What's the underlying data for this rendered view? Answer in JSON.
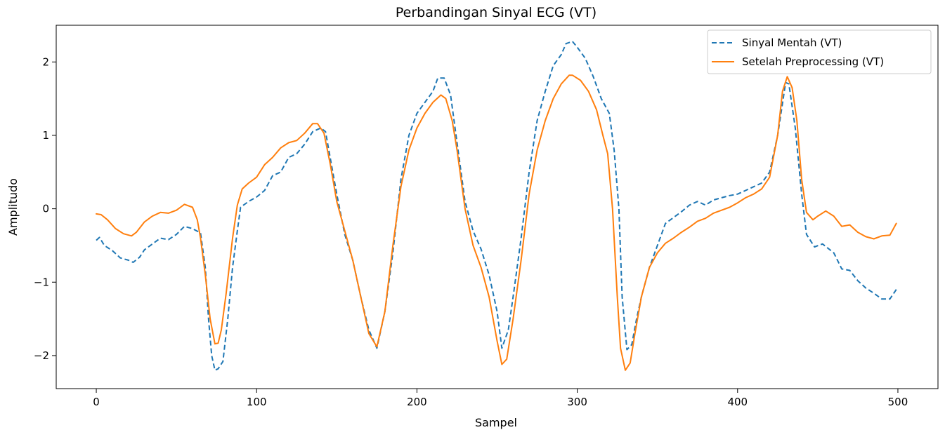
{
  "chart_data": {
    "type": "line",
    "title": "Perbandingan Sinyal ECG (VT)",
    "xlabel": "Sampel",
    "ylabel": "Amplitudo",
    "xlim": [
      -25,
      525
    ],
    "ylim": [
      -2.45,
      2.5
    ],
    "xticks": [
      0,
      100,
      200,
      300,
      400,
      500
    ],
    "xtick_labels": [
      "0",
      "100",
      "200",
      "300",
      "400",
      "500"
    ],
    "yticks": [
      -2,
      -1,
      0,
      1,
      2
    ],
    "ytick_labels": [
      "−2",
      "−1",
      "0",
      "1",
      "2"
    ],
    "grid": false,
    "legend_position": "top-right",
    "series": [
      {
        "name": "Sinyal Mentah (VT)",
        "color": "#1f77b4",
        "line_style": "dashed",
        "points": [
          [
            0,
            -0.43
          ],
          [
            2,
            -0.39
          ],
          [
            5,
            -0.5
          ],
          [
            10,
            -0.57
          ],
          [
            15,
            -0.67
          ],
          [
            20,
            -0.7
          ],
          [
            23,
            -0.73
          ],
          [
            27,
            -0.66
          ],
          [
            30,
            -0.56
          ],
          [
            35,
            -0.48
          ],
          [
            40,
            -0.4
          ],
          [
            45,
            -0.42
          ],
          [
            50,
            -0.35
          ],
          [
            55,
            -0.24
          ],
          [
            60,
            -0.27
          ],
          [
            65,
            -0.33
          ],
          [
            68,
            -0.8
          ],
          [
            70,
            -1.5
          ],
          [
            72,
            -2.0
          ],
          [
            74,
            -2.2
          ],
          [
            76,
            -2.18
          ],
          [
            79,
            -2.08
          ],
          [
            82,
            -1.5
          ],
          [
            85,
            -0.8
          ],
          [
            88,
            -0.3
          ],
          [
            90,
            0.02
          ],
          [
            95,
            0.1
          ],
          [
            100,
            0.16
          ],
          [
            105,
            0.25
          ],
          [
            110,
            0.45
          ],
          [
            115,
            0.5
          ],
          [
            120,
            0.7
          ],
          [
            125,
            0.75
          ],
          [
            130,
            0.88
          ],
          [
            135,
            1.05
          ],
          [
            140,
            1.1
          ],
          [
            143,
            1.05
          ],
          [
            150,
            0.2
          ],
          [
            155,
            -0.35
          ],
          [
            160,
            -0.7
          ],
          [
            165,
            -1.2
          ],
          [
            170,
            -1.65
          ],
          [
            175,
            -1.9
          ],
          [
            180,
            -1.4
          ],
          [
            185,
            -0.6
          ],
          [
            190,
            0.4
          ],
          [
            195,
            1.0
          ],
          [
            200,
            1.3
          ],
          [
            205,
            1.45
          ],
          [
            210,
            1.6
          ],
          [
            213,
            1.78
          ],
          [
            217,
            1.78
          ],
          [
            221,
            1.55
          ],
          [
            225,
            0.9
          ],
          [
            230,
            0.1
          ],
          [
            235,
            -0.3
          ],
          [
            240,
            -0.55
          ],
          [
            245,
            -0.9
          ],
          [
            250,
            -1.4
          ],
          [
            253,
            -1.9
          ],
          [
            257,
            -1.65
          ],
          [
            260,
            -1.2
          ],
          [
            265,
            -0.4
          ],
          [
            270,
            0.5
          ],
          [
            275,
            1.2
          ],
          [
            280,
            1.6
          ],
          [
            285,
            1.95
          ],
          [
            290,
            2.1
          ],
          [
            293,
            2.25
          ],
          [
            297,
            2.28
          ],
          [
            300,
            2.2
          ],
          [
            305,
            2.05
          ],
          [
            310,
            1.8
          ],
          [
            315,
            1.5
          ],
          [
            320,
            1.3
          ],
          [
            323,
            0.8
          ],
          [
            326,
            0.0
          ],
          [
            328,
            -1.2
          ],
          [
            331,
            -1.92
          ],
          [
            334,
            -1.85
          ],
          [
            337,
            -1.5
          ],
          [
            340,
            -1.2
          ],
          [
            345,
            -0.8
          ],
          [
            350,
            -0.5
          ],
          [
            355,
            -0.2
          ],
          [
            360,
            -0.12
          ],
          [
            365,
            -0.04
          ],
          [
            370,
            0.05
          ],
          [
            375,
            0.1
          ],
          [
            380,
            0.05
          ],
          [
            385,
            0.12
          ],
          [
            390,
            0.15
          ],
          [
            395,
            0.18
          ],
          [
            400,
            0.2
          ],
          [
            405,
            0.25
          ],
          [
            410,
            0.3
          ],
          [
            415,
            0.35
          ],
          [
            420,
            0.5
          ],
          [
            425,
            1.0
          ],
          [
            430,
            1.72
          ],
          [
            432,
            1.7
          ],
          [
            436,
            1.1
          ],
          [
            440,
            0.2
          ],
          [
            443,
            -0.35
          ],
          [
            448,
            -0.52
          ],
          [
            453,
            -0.48
          ],
          [
            460,
            -0.6
          ],
          [
            465,
            -0.82
          ],
          [
            470,
            -0.84
          ],
          [
            475,
            -0.98
          ],
          [
            480,
            -1.08
          ],
          [
            485,
            -1.15
          ],
          [
            490,
            -1.23
          ],
          [
            495,
            -1.23
          ],
          [
            499,
            -1.1
          ]
        ]
      },
      {
        "name": "Setelah Preprocessing (VT)",
        "color": "#ff7f0e",
        "line_style": "solid",
        "points": [
          [
            0,
            -0.07
          ],
          [
            3,
            -0.08
          ],
          [
            7,
            -0.15
          ],
          [
            12,
            -0.27
          ],
          [
            17,
            -0.34
          ],
          [
            22,
            -0.37
          ],
          [
            25,
            -0.32
          ],
          [
            30,
            -0.18
          ],
          [
            35,
            -0.1
          ],
          [
            40,
            -0.05
          ],
          [
            45,
            -0.06
          ],
          [
            50,
            -0.02
          ],
          [
            55,
            0.06
          ],
          [
            60,
            0.02
          ],
          [
            63,
            -0.15
          ],
          [
            65,
            -0.4
          ],
          [
            68,
            -0.9
          ],
          [
            71,
            -1.5
          ],
          [
            74,
            -1.84
          ],
          [
            76,
            -1.83
          ],
          [
            78,
            -1.65
          ],
          [
            81,
            -1.15
          ],
          [
            85,
            -0.4
          ],
          [
            88,
            0.05
          ],
          [
            91,
            0.27
          ],
          [
            95,
            0.35
          ],
          [
            100,
            0.43
          ],
          [
            105,
            0.6
          ],
          [
            110,
            0.7
          ],
          [
            115,
            0.83
          ],
          [
            120,
            0.9
          ],
          [
            125,
            0.93
          ],
          [
            130,
            1.03
          ],
          [
            135,
            1.16
          ],
          [
            138,
            1.16
          ],
          [
            142,
            1.03
          ],
          [
            146,
            0.6
          ],
          [
            150,
            0.1
          ],
          [
            155,
            -0.3
          ],
          [
            160,
            -0.7
          ],
          [
            165,
            -1.2
          ],
          [
            170,
            -1.7
          ],
          [
            175,
            -1.88
          ],
          [
            180,
            -1.4
          ],
          [
            185,
            -0.5
          ],
          [
            190,
            0.3
          ],
          [
            195,
            0.8
          ],
          [
            200,
            1.1
          ],
          [
            205,
            1.3
          ],
          [
            210,
            1.45
          ],
          [
            215,
            1.55
          ],
          [
            218,
            1.5
          ],
          [
            222,
            1.2
          ],
          [
            225,
            0.8
          ],
          [
            230,
            0.0
          ],
          [
            235,
            -0.5
          ],
          [
            240,
            -0.8
          ],
          [
            245,
            -1.2
          ],
          [
            250,
            -1.8
          ],
          [
            253,
            -2.12
          ],
          [
            256,
            -2.05
          ],
          [
            260,
            -1.5
          ],
          [
            265,
            -0.7
          ],
          [
            270,
            0.2
          ],
          [
            275,
            0.8
          ],
          [
            280,
            1.2
          ],
          [
            285,
            1.5
          ],
          [
            290,
            1.7
          ],
          [
            295,
            1.82
          ],
          [
            297,
            1.82
          ],
          [
            302,
            1.75
          ],
          [
            307,
            1.6
          ],
          [
            312,
            1.35
          ],
          [
            316,
            1.0
          ],
          [
            319,
            0.75
          ],
          [
            322,
            0.0
          ],
          [
            325,
            -1.2
          ],
          [
            327,
            -1.9
          ],
          [
            330,
            -2.2
          ],
          [
            333,
            -2.1
          ],
          [
            336,
            -1.7
          ],
          [
            340,
            -1.2
          ],
          [
            345,
            -0.8
          ],
          [
            350,
            -0.6
          ],
          [
            355,
            -0.47
          ],
          [
            360,
            -0.4
          ],
          [
            365,
            -0.32
          ],
          [
            370,
            -0.25
          ],
          [
            375,
            -0.17
          ],
          [
            380,
            -0.13
          ],
          [
            385,
            -0.06
          ],
          [
            390,
            -0.02
          ],
          [
            395,
            0.02
          ],
          [
            400,
            0.08
          ],
          [
            405,
            0.15
          ],
          [
            410,
            0.2
          ],
          [
            415,
            0.27
          ],
          [
            420,
            0.43
          ],
          [
            425,
            1.0
          ],
          [
            428,
            1.6
          ],
          [
            431,
            1.8
          ],
          [
            434,
            1.65
          ],
          [
            437,
            1.2
          ],
          [
            440,
            0.4
          ],
          [
            443,
            -0.05
          ],
          [
            447,
            -0.15
          ],
          [
            450,
            -0.1
          ],
          [
            455,
            -0.03
          ],
          [
            460,
            -0.1
          ],
          [
            465,
            -0.24
          ],
          [
            470,
            -0.22
          ],
          [
            475,
            -0.32
          ],
          [
            480,
            -0.38
          ],
          [
            485,
            -0.41
          ],
          [
            490,
            -0.37
          ],
          [
            495,
            -0.36
          ],
          [
            499,
            -0.2
          ]
        ]
      }
    ]
  }
}
